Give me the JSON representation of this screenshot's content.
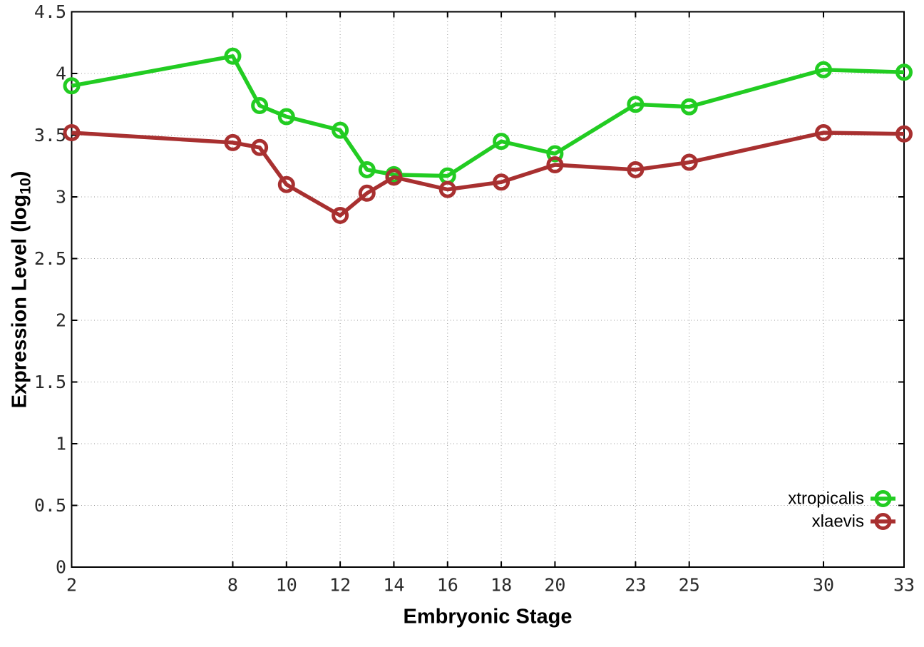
{
  "figure": {
    "background": "#ffffff"
  },
  "chart_data": {
    "type": "line",
    "title": "",
    "xlabel": "Embryonic Stage",
    "ylabel": "Expression Level (log10)",
    "ylabel_parts": {
      "main": "Expression Level (log",
      "sub": "10",
      "end": ")"
    },
    "xlim": [
      2,
      33
    ],
    "ylim": [
      0,
      4.5
    ],
    "xticks": [
      2,
      8,
      10,
      12,
      14,
      16,
      18,
      20,
      23,
      25,
      30,
      33
    ],
    "yticks": [
      0,
      0.5,
      1,
      1.5,
      2,
      2.5,
      3,
      3.5,
      4,
      4.5
    ],
    "grid": true,
    "marker": "open-circle",
    "legend_position": "bottom-right",
    "x": [
      2,
      8,
      9,
      10,
      12,
      13,
      14,
      16,
      18,
      20,
      23,
      25,
      30,
      33
    ],
    "series": [
      {
        "name": "xtropicalis",
        "color": "#22cc22",
        "values": [
          3.9,
          4.14,
          3.74,
          3.65,
          3.54,
          3.22,
          3.18,
          3.17,
          3.45,
          3.35,
          3.75,
          3.73,
          4.03,
          4.01
        ]
      },
      {
        "name": "xlaevis",
        "color": "#a83030",
        "values": [
          3.52,
          3.44,
          3.4,
          3.1,
          2.85,
          3.03,
          3.16,
          3.06,
          3.12,
          3.26,
          3.22,
          3.28,
          3.52,
          3.51
        ]
      }
    ]
  }
}
